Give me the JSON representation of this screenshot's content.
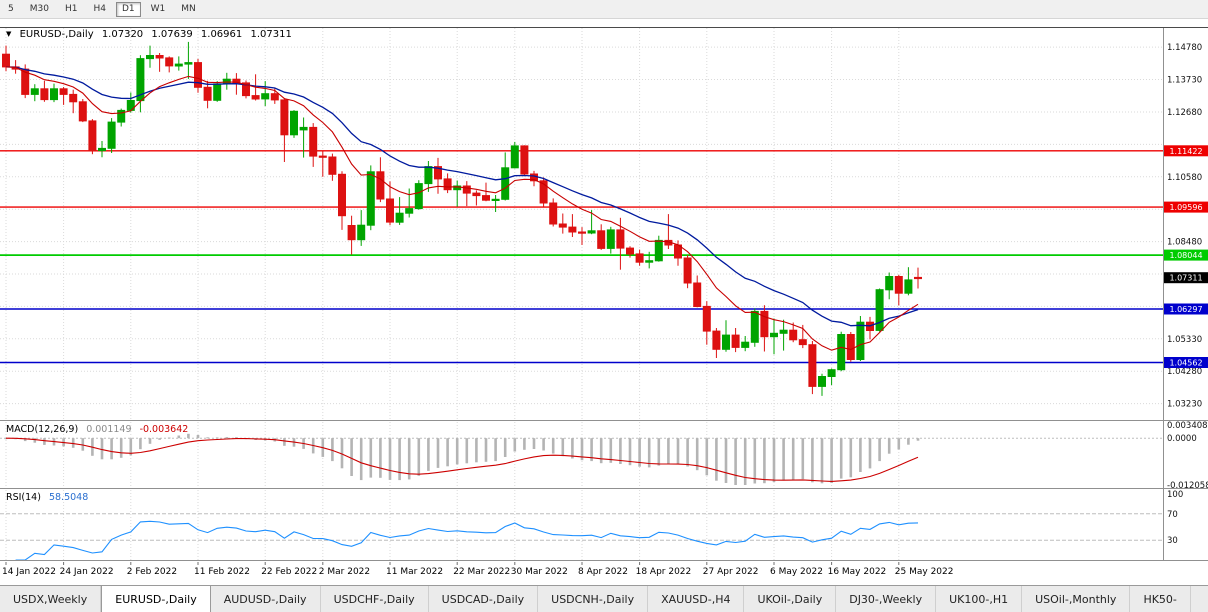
{
  "toolbar": {
    "timeframes": [
      "5",
      "M30",
      "H1",
      "H4",
      "D1",
      "W1",
      "MN"
    ],
    "active": "D1"
  },
  "legend": {
    "dropdown_icon": "▼",
    "symbol": "EURUSD-,Daily",
    "open": "1.07320",
    "high": "1.07639",
    "low": "1.06961",
    "close": "1.07311"
  },
  "macd_legend": {
    "label": "MACD(12,26,9)",
    "main_value": "0.001149",
    "signal_value": "-0.003642"
  },
  "rsi_legend": {
    "label": "RSI(14)",
    "value": "58.5048"
  },
  "tabs": {
    "active_index": 1,
    "items": [
      "USDX,Weekly",
      "EURUSD-,Daily",
      "AUDUSD-,Daily",
      "USDCHF-,Daily",
      "USDCAD-,Daily",
      "USDCNH-,Daily",
      "XAUUSD-,H4",
      "UKOil-,Daily",
      "DJ30-,Weekly",
      "UK100-,H1",
      "USOil-,Monthly",
      "HK50-"
    ]
  },
  "chart_data": {
    "type": "candlestick",
    "symbol": "EURUSD-",
    "timeframe": "Daily",
    "price_scale": {
      "view_max": 1.154,
      "view_min": 1.027,
      "label_start": 1.1478,
      "label_step": 0.0105,
      "label_count": 12
    },
    "h_lines": [
      {
        "price": 1.11422,
        "color": "#ee0000",
        "label": "1.11422"
      },
      {
        "price": 1.09596,
        "color": "#ee0000",
        "label": "1.09596"
      },
      {
        "price": 1.08044,
        "color": "#00cc00",
        "label": "1.08044"
      },
      {
        "price": 1.06297,
        "color": "#0000cc",
        "label": "1.06297"
      },
      {
        "price": 1.04562,
        "color": "#0000cc",
        "label": "1.04562"
      }
    ],
    "current_price": {
      "value": 1.07311,
      "label": "1.07311",
      "color": "#000000"
    },
    "date_ticks": [
      {
        "i": 0,
        "label": "14 Jan 2022"
      },
      {
        "i": 6,
        "label": "24 Jan 2022"
      },
      {
        "i": 13,
        "label": "2 Feb 2022"
      },
      {
        "i": 20,
        "label": "11 Feb 2022"
      },
      {
        "i": 27,
        "label": "22 Feb 2022"
      },
      {
        "i": 33,
        "label": "2 Mar 2022"
      },
      {
        "i": 40,
        "label": "11 Mar 2022"
      },
      {
        "i": 47,
        "label": "22 Mar 2022"
      },
      {
        "i": 53,
        "label": "30 Mar 2022"
      },
      {
        "i": 60,
        "label": "8 Apr 2022"
      },
      {
        "i": 66,
        "label": "18 Apr 2022"
      },
      {
        "i": 73,
        "label": "27 Apr 2022"
      },
      {
        "i": 80,
        "label": "6 May 2022"
      },
      {
        "i": 86,
        "label": "16 May 2022"
      },
      {
        "i": 93,
        "label": "25 May 2022"
      }
    ],
    "candles": [
      [
        1.1455,
        1.1483,
        1.14,
        1.1414
      ],
      [
        1.1414,
        1.1436,
        1.1392,
        1.1407
      ],
      [
        1.1407,
        1.1422,
        1.1313,
        1.1325
      ],
      [
        1.1325,
        1.1358,
        1.1303,
        1.1343
      ],
      [
        1.1343,
        1.1369,
        1.1301,
        1.1308
      ],
      [
        1.1308,
        1.136,
        1.13,
        1.1343
      ],
      [
        1.1343,
        1.1349,
        1.1291,
        1.1325
      ],
      [
        1.1325,
        1.134,
        1.1264,
        1.1301
      ],
      [
        1.1301,
        1.131,
        1.1235,
        1.1239
      ],
      [
        1.1239,
        1.1245,
        1.1131,
        1.1143
      ],
      [
        1.1143,
        1.1174,
        1.1121,
        1.115
      ],
      [
        1.115,
        1.1248,
        1.1135,
        1.1235
      ],
      [
        1.1235,
        1.1279,
        1.1221,
        1.1273
      ],
      [
        1.1273,
        1.1331,
        1.1266,
        1.1305
      ],
      [
        1.1305,
        1.1452,
        1.1267,
        1.1441
      ],
      [
        1.1441,
        1.1483,
        1.1411,
        1.1451
      ],
      [
        1.1451,
        1.1459,
        1.1398,
        1.1443
      ],
      [
        1.1443,
        1.1448,
        1.1396,
        1.1417
      ],
      [
        1.1417,
        1.1448,
        1.1402,
        1.1423
      ],
      [
        1.1423,
        1.1495,
        1.1375,
        1.1428
      ],
      [
        1.1428,
        1.144,
        1.133,
        1.1348
      ],
      [
        1.1348,
        1.1369,
        1.128,
        1.1306
      ],
      [
        1.1306,
        1.1368,
        1.1301,
        1.1359
      ],
      [
        1.1359,
        1.1395,
        1.134,
        1.1374
      ],
      [
        1.1374,
        1.1394,
        1.1324,
        1.1362
      ],
      [
        1.1362,
        1.137,
        1.1312,
        1.1321
      ],
      [
        1.1321,
        1.139,
        1.1305,
        1.131
      ],
      [
        1.131,
        1.1368,
        1.1287,
        1.1327
      ],
      [
        1.1327,
        1.1344,
        1.1294,
        1.1307
      ],
      [
        1.1307,
        1.1313,
        1.1106,
        1.1194
      ],
      [
        1.1194,
        1.1274,
        1.1184,
        1.127
      ],
      [
        1.121,
        1.125,
        1.112,
        1.1218
      ],
      [
        1.1218,
        1.1232,
        1.109,
        1.1125
      ],
      [
        1.1125,
        1.114,
        1.1058,
        1.1122
      ],
      [
        1.1122,
        1.1133,
        1.1045,
        1.1066
      ],
      [
        1.1066,
        1.1076,
        1.0886,
        1.0932
      ],
      [
        1.09,
        1.0932,
        1.0806,
        1.0854
      ],
      [
        1.0854,
        1.095,
        1.0834,
        1.0901
      ],
      [
        1.0901,
        1.1095,
        1.0885,
        1.1074
      ],
      [
        1.1074,
        1.1121,
        1.0976,
        1.0986
      ],
      [
        1.0986,
        1.1043,
        1.0901,
        1.0911
      ],
      [
        1.0911,
        1.0992,
        1.0902,
        1.094
      ],
      [
        1.094,
        1.102,
        1.0926,
        1.0955
      ],
      [
        1.0955,
        1.1047,
        1.0951,
        1.1036
      ],
      [
        1.1036,
        1.1109,
        1.1009,
        1.1091
      ],
      [
        1.1091,
        1.1119,
        1.1003,
        1.1051
      ],
      [
        1.1051,
        1.1069,
        1.1005,
        1.1016
      ],
      [
        1.1016,
        1.1046,
        1.0961,
        1.1028
      ],
      [
        1.1028,
        1.1044,
        1.0963,
        1.1005
      ],
      [
        1.1005,
        1.1014,
        1.0965,
        1.0997
      ],
      [
        1.0997,
        1.1039,
        1.0979,
        1.0982
      ],
      [
        1.0982,
        1.0999,
        1.0944,
        1.0985
      ],
      [
        1.0985,
        1.1137,
        1.0981,
        1.1087
      ],
      [
        1.1087,
        1.1171,
        1.1085,
        1.1158
      ],
      [
        1.1158,
        1.116,
        1.106,
        1.1067
      ],
      [
        1.1067,
        1.1077,
        1.1027,
        1.1045
      ],
      [
        1.1045,
        1.1056,
        1.0961,
        1.0973
      ],
      [
        1.0973,
        1.0988,
        1.0897,
        1.0905
      ],
      [
        1.0905,
        1.0939,
        1.0874,
        1.0895
      ],
      [
        1.0895,
        1.0937,
        1.0863,
        1.0879
      ],
      [
        1.0879,
        1.0895,
        1.0837,
        1.0876
      ],
      [
        1.0876,
        1.095,
        1.0872,
        1.0883
      ],
      [
        1.0883,
        1.0904,
        1.0821,
        1.0826
      ],
      [
        1.0826,
        1.0896,
        1.0809,
        1.0886
      ],
      [
        1.0886,
        1.0925,
        1.0757,
        1.0827
      ],
      [
        1.0827,
        1.0833,
        1.0796,
        1.0808
      ],
      [
        1.0808,
        1.0822,
        1.077,
        1.0781
      ],
      [
        1.0781,
        1.0815,
        1.0761,
        1.0786
      ],
      [
        1.0786,
        1.0867,
        1.0783,
        1.0852
      ],
      [
        1.0852,
        1.0937,
        1.0824,
        1.0837
      ],
      [
        1.0837,
        1.0852,
        1.077,
        1.0795
      ],
      [
        1.0795,
        1.0805,
        1.0697,
        1.0714
      ],
      [
        1.0714,
        1.0738,
        1.0635,
        1.0638
      ],
      [
        1.0638,
        1.0655,
        1.0514,
        1.0558
      ],
      [
        1.0558,
        1.0568,
        1.0471,
        1.0499
      ],
      [
        1.0499,
        1.0593,
        1.0491,
        1.0545
      ],
      [
        1.0545,
        1.0568,
        1.049,
        1.0505
      ],
      [
        1.0505,
        1.0542,
        1.0493,
        1.0522
      ],
      [
        1.0522,
        1.0632,
        1.0507,
        1.0622
      ],
      [
        1.0622,
        1.0642,
        1.0492,
        1.054
      ],
      [
        1.054,
        1.0599,
        1.0483,
        1.0551
      ],
      [
        1.0551,
        1.0595,
        1.0495,
        1.0561
      ],
      [
        1.0561,
        1.0586,
        1.0522,
        1.053
      ],
      [
        1.053,
        1.0578,
        1.0503,
        1.0514
      ],
      [
        1.0514,
        1.0526,
        1.0354,
        1.0379
      ],
      [
        1.0379,
        1.042,
        1.0348,
        1.0411
      ],
      [
        1.0411,
        1.0437,
        1.0383,
        1.0433
      ],
      [
        1.0433,
        1.0556,
        1.0428,
        1.0547
      ],
      [
        1.0547,
        1.0555,
        1.0459,
        1.0466
      ],
      [
        1.0466,
        1.0607,
        1.0461,
        1.0587
      ],
      [
        1.0587,
        1.0604,
        1.0531,
        1.056
      ],
      [
        1.056,
        1.0696,
        1.0556,
        1.0692
      ],
      [
        1.0692,
        1.0748,
        1.0661,
        1.0735
      ],
      [
        1.0735,
        1.074,
        1.0641,
        1.0681
      ],
      [
        1.0681,
        1.0765,
        1.0674,
        1.0724
      ],
      [
        1.0732,
        1.07639,
        1.06961,
        1.07311
      ]
    ],
    "macd": {
      "params": [
        12,
        26,
        9
      ],
      "scale_max": 0.003408,
      "scale_min": -0.012058,
      "axis_labels": [
        "0.003408",
        "0.0000",
        "-0.012058"
      ]
    },
    "rsi": {
      "period": 14,
      "levels": [
        100,
        70,
        30
      ]
    },
    "colors": {
      "up": "#00a400",
      "down": "#dd1111",
      "ma_fast": "#c80000",
      "ma_slow": "#001a9e",
      "macd_hist": "#b4b4b4",
      "macd_signal": "#cc0000",
      "rsi_line": "#1e90ff",
      "grid": "#dadada",
      "level_dash": "#bdbdbd"
    }
  }
}
